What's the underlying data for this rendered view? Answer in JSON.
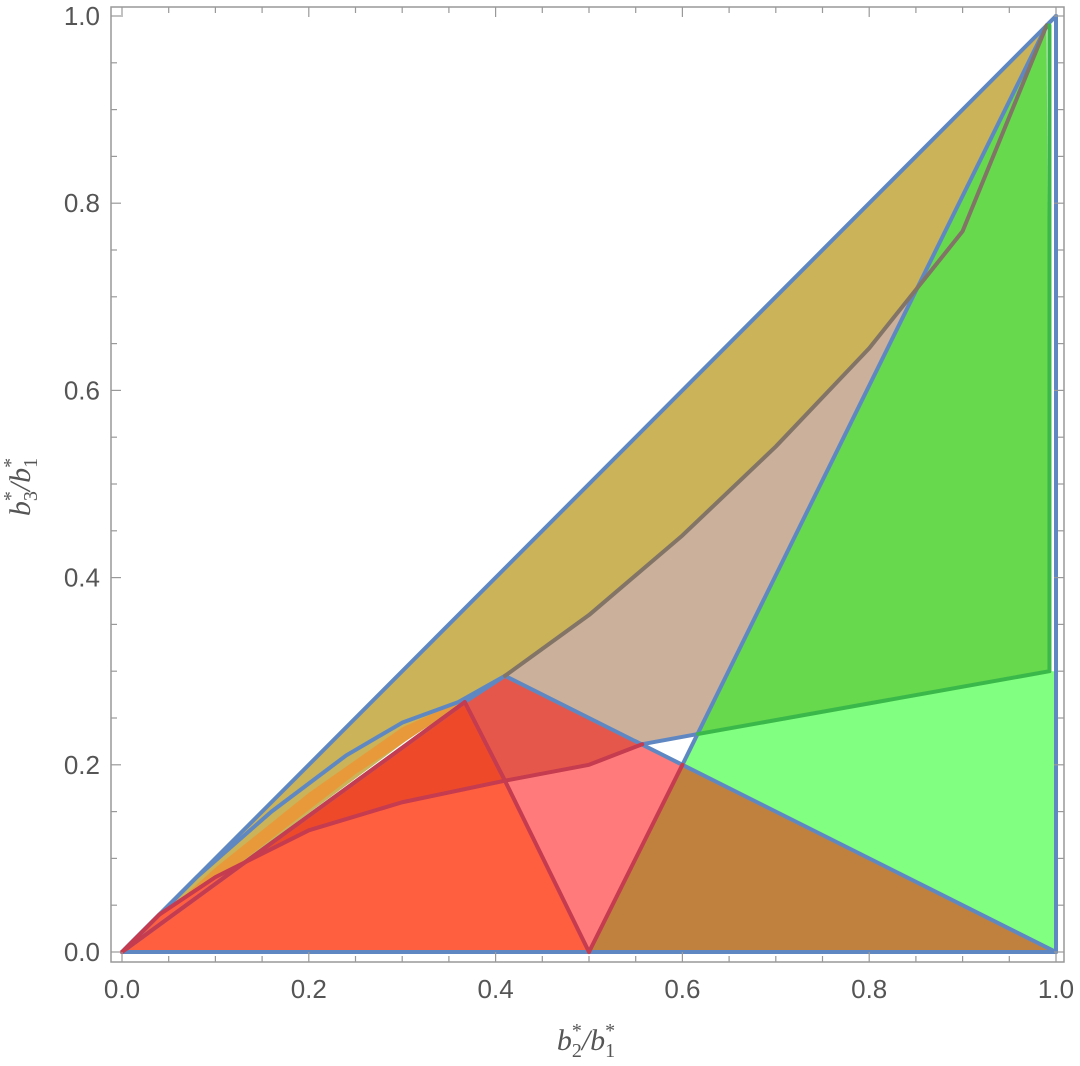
{
  "chart_data": {
    "type": "region_plot",
    "xlabel": {
      "base1": "b",
      "sub1": "2",
      "slash": "/",
      "base2": "b",
      "sub2": "1",
      "sup": "*"
    },
    "ylabel": {
      "base1": "b",
      "sub1": "3",
      "slash": "/",
      "base2": "b",
      "sub2": "1",
      "sup": "*"
    },
    "xlim": [
      0,
      1
    ],
    "ylim": [
      0,
      1
    ],
    "x_ticks": [
      "0.0",
      "0.2",
      "0.4",
      "0.6",
      "0.8",
      "1.0"
    ],
    "y_ticks": [
      "0.0",
      "0.2",
      "0.4",
      "0.6",
      "0.8",
      "1.0"
    ],
    "colors": {
      "olive": "#cab358",
      "tan": "#cbb09b",
      "green_dark": "#66d94d",
      "green_light": "#80ff80",
      "brown": "#c1813e",
      "pink": "#ff7a7a",
      "red_dark": "#e5574b",
      "orange_red": "#ff5f3f",
      "orange": "#e89a3a",
      "red_inner": "#ee4a2a",
      "line_blue": "#5f88c2",
      "line_red": "#c53b4f",
      "line_grey": "#827466",
      "line_green": "#3bb84a"
    },
    "regions": [
      {
        "name": "olive-region",
        "color": "olive",
        "points": [
          [
            0,
            0
          ],
          [
            0.36,
            0.267
          ],
          [
            0.41,
            0.295
          ],
          [
            0.5,
            0.36
          ],
          [
            0.6,
            0.445
          ],
          [
            0.7,
            0.54
          ],
          [
            0.8,
            0.645
          ],
          [
            0.9,
            0.77
          ],
          [
            0.99,
            0.99
          ]
        ]
      },
      {
        "name": "tan-region",
        "color": "tan",
        "points": [
          [
            0.41,
            0.295
          ],
          [
            0.5,
            0.36
          ],
          [
            0.6,
            0.445
          ],
          [
            0.7,
            0.54
          ],
          [
            0.8,
            0.645
          ],
          [
            0.9,
            0.77
          ],
          [
            0.99,
            0.99
          ],
          [
            0.617,
            0.233
          ],
          [
            0.557,
            0.222
          ]
        ]
      },
      {
        "name": "green-dark-region",
        "color": "green_dark",
        "points": [
          [
            0.99,
            0.99
          ],
          [
            0.993,
            0.3
          ],
          [
            0.617,
            0.233
          ]
        ]
      },
      {
        "name": "green-light-region",
        "color": "green_light",
        "points": [
          [
            0.617,
            0.233
          ],
          [
            0.993,
            0.3
          ],
          [
            1,
            0.3
          ],
          [
            1,
            0
          ],
          [
            0.6,
            0.2
          ]
        ]
      },
      {
        "name": "white-gap-region",
        "color": "white",
        "points": [
          [
            0.557,
            0.222
          ],
          [
            0.617,
            0.233
          ],
          [
            0.6,
            0.2
          ]
        ]
      },
      {
        "name": "brown-region",
        "color": "brown",
        "points": [
          [
            0.5,
            0
          ],
          [
            1,
            0
          ],
          [
            0.6,
            0.2
          ]
        ]
      },
      {
        "name": "pink-region",
        "color": "pink",
        "points": [
          [
            0.41,
            0.183
          ],
          [
            0.5,
            0.2
          ],
          [
            0.557,
            0.222
          ],
          [
            0.6,
            0.2
          ],
          [
            0.5,
            0
          ]
        ]
      },
      {
        "name": "red-dark-region",
        "color": "red_dark",
        "points": [
          [
            0.367,
            0.267
          ],
          [
            0.41,
            0.295
          ],
          [
            0.557,
            0.222
          ],
          [
            0.5,
            0.2
          ],
          [
            0.41,
            0.183
          ]
        ]
      },
      {
        "name": "orange-region",
        "color": "orange",
        "points": [
          [
            0,
            0
          ],
          [
            0.1,
            0.09
          ],
          [
            0.2,
            0.17
          ],
          [
            0.3,
            0.24
          ],
          [
            0.36,
            0.267
          ],
          [
            0.367,
            0.267
          ],
          [
            0.25,
            0.19
          ],
          [
            0.12,
            0.09
          ]
        ]
      },
      {
        "name": "red-inner-region",
        "color": "red_inner",
        "points": [
          [
            0,
            0
          ],
          [
            0.367,
            0.267
          ],
          [
            0.41,
            0.183
          ],
          [
            0.3,
            0.16
          ],
          [
            0.2,
            0.13
          ],
          [
            0.1,
            0.08
          ],
          [
            0.04,
            0.04
          ]
        ]
      },
      {
        "name": "orange-red-region",
        "color": "orange_red",
        "points": [
          [
            0,
            0
          ],
          [
            0.04,
            0.04
          ],
          [
            0.1,
            0.08
          ],
          [
            0.2,
            0.13
          ],
          [
            0.3,
            0.16
          ],
          [
            0.41,
            0.183
          ],
          [
            0.5,
            0
          ],
          [
            0,
            0
          ]
        ]
      }
    ],
    "lines": [
      {
        "name": "diagonal-line",
        "color": "line_blue",
        "points": [
          [
            0,
            0
          ],
          [
            1,
            1
          ]
        ]
      },
      {
        "name": "bottom-line",
        "color": "line_blue",
        "points": [
          [
            0,
            0
          ],
          [
            1,
            0
          ]
        ]
      },
      {
        "name": "right-line",
        "color": "line_blue",
        "points": [
          [
            1,
            0
          ],
          [
            1,
            1
          ]
        ]
      },
      {
        "name": "top-right-line",
        "color": "line_blue",
        "points": [
          [
            0.6,
            0.2
          ],
          [
            0.99,
            0.99
          ]
        ]
      },
      {
        "name": "cap-line",
        "color": "line_blue",
        "points": [
          [
            0.99,
            0.99
          ],
          [
            1,
            1
          ]
        ]
      },
      {
        "name": "descending-line",
        "color": "line_blue",
        "points": [
          [
            0.41,
            0.295
          ],
          [
            0.6,
            0.2
          ],
          [
            1,
            0
          ]
        ]
      },
      {
        "name": "curve-to-peak",
        "color": "line_blue",
        "points": [
          [
            0,
            0
          ],
          [
            0.08,
            0.08
          ],
          [
            0.16,
            0.15
          ],
          [
            0.24,
            0.21
          ],
          [
            0.3,
            0.245
          ],
          [
            0.36,
            0.267
          ],
          [
            0.41,
            0.295
          ]
        ]
      },
      {
        "name": "inner-diag-line",
        "color": "line_blue",
        "points": [
          [
            0,
            0
          ],
          [
            0.367,
            0.267
          ],
          [
            0.41,
            0.295
          ]
        ]
      },
      {
        "name": "green-lower-curve",
        "color": "line_blue",
        "points": [
          [
            0.557,
            0.222
          ],
          [
            0.617,
            0.233
          ]
        ]
      },
      {
        "name": "grey-curve",
        "color": "line_grey",
        "points": [
          [
            0.41,
            0.295
          ],
          [
            0.5,
            0.36
          ],
          [
            0.6,
            0.445
          ],
          [
            0.7,
            0.54
          ],
          [
            0.8,
            0.645
          ],
          [
            0.9,
            0.77
          ],
          [
            0.99,
            0.99
          ]
        ]
      },
      {
        "name": "green-border-line",
        "color": "line_green",
        "points": [
          [
            0.617,
            0.233
          ],
          [
            0.993,
            0.3
          ],
          [
            0.993,
            0.99
          ]
        ]
      },
      {
        "name": "red-curve",
        "color": "line_red",
        "points": [
          [
            0,
            0
          ],
          [
            0.04,
            0.04
          ],
          [
            0.1,
            0.08
          ],
          [
            0.2,
            0.13
          ],
          [
            0.3,
            0.16
          ],
          [
            0.41,
            0.183
          ],
          [
            0.5,
            0.2
          ],
          [
            0.557,
            0.222
          ]
        ]
      },
      {
        "name": "red-left-edge",
        "color": "line_red",
        "points": [
          [
            0.367,
            0.267
          ],
          [
            0.41,
            0.183
          ],
          [
            0.5,
            0
          ]
        ]
      },
      {
        "name": "red-right-edge",
        "color": "line_red",
        "points": [
          [
            0.5,
            0
          ],
          [
            0.6,
            0.2
          ]
        ]
      },
      {
        "name": "red-diag-line",
        "color": "line_red",
        "points": [
          [
            0,
            0
          ],
          [
            0.367,
            0.267
          ]
        ]
      }
    ]
  }
}
